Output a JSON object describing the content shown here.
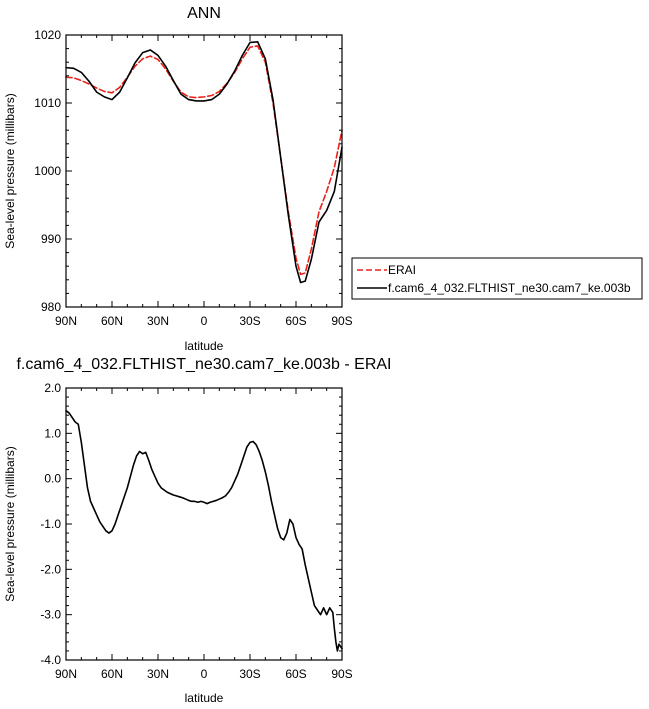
{
  "chart_data": [
    {
      "type": "line",
      "title": "ANN",
      "xlabel": "latitude",
      "ylabel": "Sea-level pressure (millibars)",
      "x_direction": "north-to-south",
      "xlim": [
        90,
        -90
      ],
      "ylim": [
        980,
        1020
      ],
      "xticks": [
        90,
        60,
        30,
        0,
        -30,
        -60,
        -90
      ],
      "xtick_labels": [
        "90N",
        "60N",
        "30N",
        "0",
        "30S",
        "60S",
        "90S"
      ],
      "yticks": [
        980,
        990,
        1000,
        1010,
        1020
      ],
      "ytick_labels": [
        "980",
        "990",
        "1000",
        "1010",
        "1020"
      ],
      "legend_position": "outside-right",
      "series": [
        {
          "name": "ERAI",
          "color": "#e8221c",
          "dash": "dashed",
          "x": [
            90,
            85,
            80,
            75,
            70,
            65,
            60,
            55,
            50,
            45,
            40,
            35,
            30,
            25,
            20,
            15,
            10,
            5,
            0,
            -5,
            -10,
            -15,
            -20,
            -25,
            -30,
            -35,
            -40,
            -45,
            -50,
            -55,
            -60,
            -63,
            -66,
            -70,
            -75,
            -80,
            -85,
            -90
          ],
          "y": [
            1013.8,
            1013.7,
            1013.3,
            1012.8,
            1012.2,
            1011.7,
            1011.5,
            1012.3,
            1013.8,
            1015.4,
            1016.5,
            1016.9,
            1016.4,
            1015.0,
            1013.2,
            1011.6,
            1010.9,
            1010.8,
            1010.9,
            1011.1,
            1011.7,
            1012.9,
            1014.5,
            1016.5,
            1018.2,
            1018.4,
            1016.0,
            1010.0,
            1002.0,
            994.0,
            987.2,
            984.8,
            985.0,
            988.5,
            994.0,
            997.0,
            1000.5,
            1006.0
          ]
        },
        {
          "name": "f.cam6_4_032.FLTHIST_ne30.cam7_ke.003b",
          "color": "#000000",
          "dash": "solid",
          "x": [
            90,
            85,
            80,
            75,
            70,
            65,
            60,
            55,
            50,
            45,
            40,
            35,
            30,
            25,
            20,
            15,
            10,
            5,
            0,
            -5,
            -10,
            -15,
            -20,
            -25,
            -30,
            -35,
            -40,
            -45,
            -50,
            -55,
            -60,
            -63,
            -66,
            -70,
            -75,
            -80,
            -85,
            -90
          ],
          "y": [
            1015.2,
            1015.1,
            1014.5,
            1013.2,
            1011.6,
            1010.9,
            1010.5,
            1011.6,
            1013.7,
            1015.9,
            1017.4,
            1017.8,
            1017.0,
            1015.4,
            1013.3,
            1011.3,
            1010.5,
            1010.3,
            1010.3,
            1010.5,
            1011.3,
            1012.8,
            1014.7,
            1017.0,
            1018.9,
            1019.0,
            1016.5,
            1010.5,
            1002.0,
            993.5,
            986.0,
            983.6,
            983.8,
            987.0,
            992.5,
            994.2,
            997.0,
            1003.5
          ]
        }
      ]
    },
    {
      "type": "line",
      "title": "f.cam6_4_032.FLTHIST_ne30.cam7_ke.003b - ERAI",
      "xlabel": "latitude",
      "ylabel": "Sea-level pressure (millibars)",
      "x_direction": "north-to-south",
      "xlim": [
        90,
        -90
      ],
      "ylim": [
        -4.0,
        2.0
      ],
      "xticks": [
        90,
        60,
        30,
        0,
        -30,
        -60,
        -90
      ],
      "xtick_labels": [
        "90N",
        "60N",
        "30N",
        "0",
        "30S",
        "60S",
        "90S"
      ],
      "yticks": [
        -4.0,
        -3.0,
        -2.0,
        -1.0,
        0.0,
        1.0,
        2.0
      ],
      "ytick_labels": [
        "-4.0",
        "-3.0",
        "-2.0",
        "-1.0",
        "0.0",
        "1.0",
        "2.0"
      ],
      "series": [
        {
          "color": "#000000",
          "dash": "solid",
          "x": [
            90,
            88,
            86,
            84,
            82,
            80,
            78,
            76,
            74,
            72,
            70,
            68,
            66,
            64,
            62,
            60,
            58,
            56,
            54,
            52,
            50,
            48,
            46,
            44,
            42,
            40,
            38,
            36,
            34,
            32,
            30,
            28,
            26,
            24,
            22,
            20,
            18,
            16,
            14,
            12,
            10,
            8,
            6,
            4,
            2,
            0,
            -2,
            -4,
            -6,
            -8,
            -10,
            -12,
            -14,
            -16,
            -18,
            -20,
            -22,
            -24,
            -26,
            -28,
            -30,
            -32,
            -34,
            -36,
            -38,
            -40,
            -42,
            -44,
            -46,
            -48,
            -50,
            -52,
            -54,
            -56,
            -58,
            -60,
            -62,
            -64,
            -66,
            -68,
            -70,
            -72,
            -74,
            -76,
            -78,
            -80,
            -82,
            -84,
            -85,
            -86,
            -87,
            -88,
            -89,
            -90
          ],
          "y": [
            1.5,
            1.45,
            1.35,
            1.25,
            1.2,
            0.8,
            0.3,
            -0.2,
            -0.5,
            -0.65,
            -0.8,
            -0.95,
            -1.05,
            -1.15,
            -1.2,
            -1.15,
            -1.0,
            -0.8,
            -0.6,
            -0.4,
            -0.2,
            0.05,
            0.3,
            0.5,
            0.6,
            0.55,
            0.58,
            0.4,
            0.2,
            0.05,
            -0.1,
            -0.2,
            -0.25,
            -0.3,
            -0.33,
            -0.36,
            -0.38,
            -0.4,
            -0.42,
            -0.45,
            -0.48,
            -0.5,
            -0.5,
            -0.52,
            -0.5,
            -0.52,
            -0.55,
            -0.52,
            -0.5,
            -0.48,
            -0.45,
            -0.42,
            -0.38,
            -0.3,
            -0.2,
            -0.05,
            0.1,
            0.3,
            0.5,
            0.7,
            0.8,
            0.82,
            0.75,
            0.6,
            0.4,
            0.15,
            -0.15,
            -0.5,
            -0.8,
            -1.1,
            -1.3,
            -1.35,
            -1.2,
            -0.9,
            -1.0,
            -1.3,
            -1.45,
            -1.55,
            -1.9,
            -2.2,
            -2.5,
            -2.8,
            -2.9,
            -3.0,
            -2.85,
            -3.0,
            -2.85,
            -2.95,
            -3.3,
            -3.6,
            -3.8,
            -3.65,
            -3.7,
            -3.75
          ]
        }
      ]
    }
  ]
}
